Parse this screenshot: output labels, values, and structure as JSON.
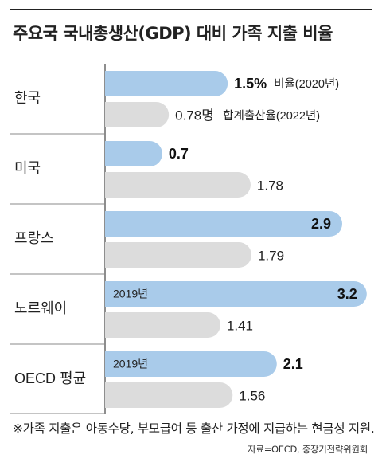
{
  "title": "주요국 국내총생산(GDP) 대비 가족 지출 비율",
  "footnote": "※가족 지출은 아동수당, 부모급여 등 출산 가정에 지급하는 현금성 지원.",
  "source": "자료=OECD, 중장기전략위원회",
  "chart_data": {
    "type": "bar",
    "orientation": "horizontal",
    "categories": [
      "한국",
      "미국",
      "프랑스",
      "노르웨이",
      "OECD 평균"
    ],
    "series": [
      {
        "name": "비율",
        "color": "#a9cbea",
        "values": [
          1.5,
          0.7,
          2.9,
          3.2,
          2.1
        ],
        "labels": [
          "1.5%",
          "0.7",
          "2.9",
          "3.2",
          "2.1"
        ]
      },
      {
        "name": "합계출산율",
        "color": "#dcdcdc",
        "values": [
          0.78,
          1.78,
          1.79,
          1.41,
          1.56
        ],
        "labels": [
          "0.78명",
          "1.78",
          "1.79",
          "1.41",
          "1.56"
        ]
      }
    ],
    "annotations": {
      "series0_suffix_first": "비율(2020년)",
      "series1_suffix_first": "합계출산율(2022년)",
      "year_notes": [
        "",
        "",
        "",
        "2019년",
        "2019년"
      ]
    }
  }
}
